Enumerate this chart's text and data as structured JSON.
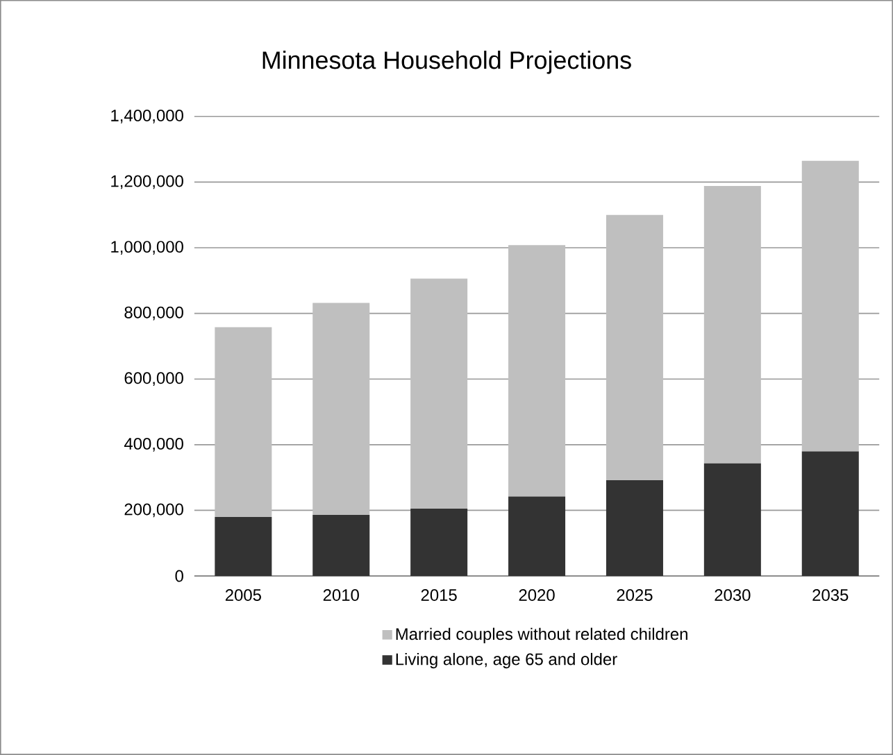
{
  "chart_data": {
    "type": "bar",
    "title": "Minnesota Household Projections",
    "categories": [
      "2005",
      "2010",
      "2015",
      "2020",
      "2025",
      "2030",
      "2035"
    ],
    "stacked": true,
    "series": [
      {
        "name": "Living alone, age 65 and older",
        "color": "#333333",
        "values": [
          180000,
          186000,
          205000,
          242000,
          292000,
          343000,
          380000
        ]
      },
      {
        "name": "Married couples without related children",
        "color": "#bfbfbf",
        "values": [
          578000,
          646000,
          701000,
          766000,
          808000,
          845000,
          885000
        ]
      }
    ],
    "ylim": [
      0,
      1400000
    ],
    "yticks": [
      {
        "value": 0,
        "label": "0"
      },
      {
        "value": 200000,
        "label": "200,000"
      },
      {
        "value": 400000,
        "label": "400,000"
      },
      {
        "value": 600000,
        "label": "600,000"
      },
      {
        "value": 800000,
        "label": "800,000"
      },
      {
        "value": 1000000,
        "label": "1,000,000"
      },
      {
        "value": 1200000,
        "label": "1,200,000"
      },
      {
        "value": 1400000,
        "label": "1,400,000"
      }
    ],
    "grid": "y",
    "legend": "bottom"
  }
}
